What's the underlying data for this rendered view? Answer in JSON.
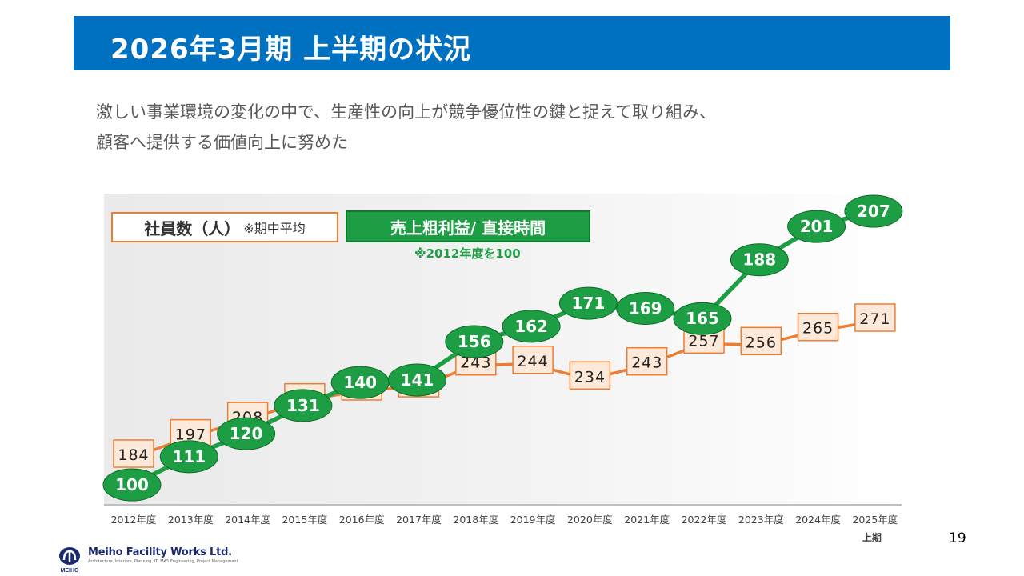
{
  "header": {
    "title": "2026年3月期 上半期の状況"
  },
  "intro": {
    "line1": "激しい事業環境の変化の中で、生産性の向上が競争優位性の鍵と捉えて取り組み、",
    "line2": "顧客へ提供する価値向上に努めた"
  },
  "legend": {
    "employees_label": "社員数（人）",
    "employees_note": "※期中平均",
    "profit_label": "売上粗利益/ 直接時間",
    "profit_note": "※2012年度を100"
  },
  "chart_data": {
    "type": "line",
    "categories": [
      "2012年度",
      "2013年度",
      "2014年度",
      "2015年度",
      "2016年度",
      "2017年度",
      "2018年度",
      "2019年度",
      "2020年度",
      "2021年度",
      "2022年度",
      "2023年度",
      "2024年度",
      "2025年度"
    ],
    "category_note": "上期",
    "series": [
      {
        "name": "社員数（人）",
        "color": "#ed7d31",
        "values": [
          184,
          197,
          208,
          220,
          227,
          229,
          243,
          244,
          234,
          243,
          257,
          256,
          265,
          271
        ]
      },
      {
        "name": "売上粗利益/ 直接時間",
        "color": "#1e9e44",
        "values": [
          100,
          111,
          120,
          131,
          140,
          141,
          156,
          162,
          171,
          169,
          165,
          188,
          201,
          207
        ]
      }
    ]
  },
  "footer": {
    "page_number": "19",
    "company": "Meiho Facility Works Ltd.",
    "logo_mark": "MEIHO",
    "tagline": "Architecture, Interiors, Planning, IT, MAS Engineering, Project Management"
  }
}
